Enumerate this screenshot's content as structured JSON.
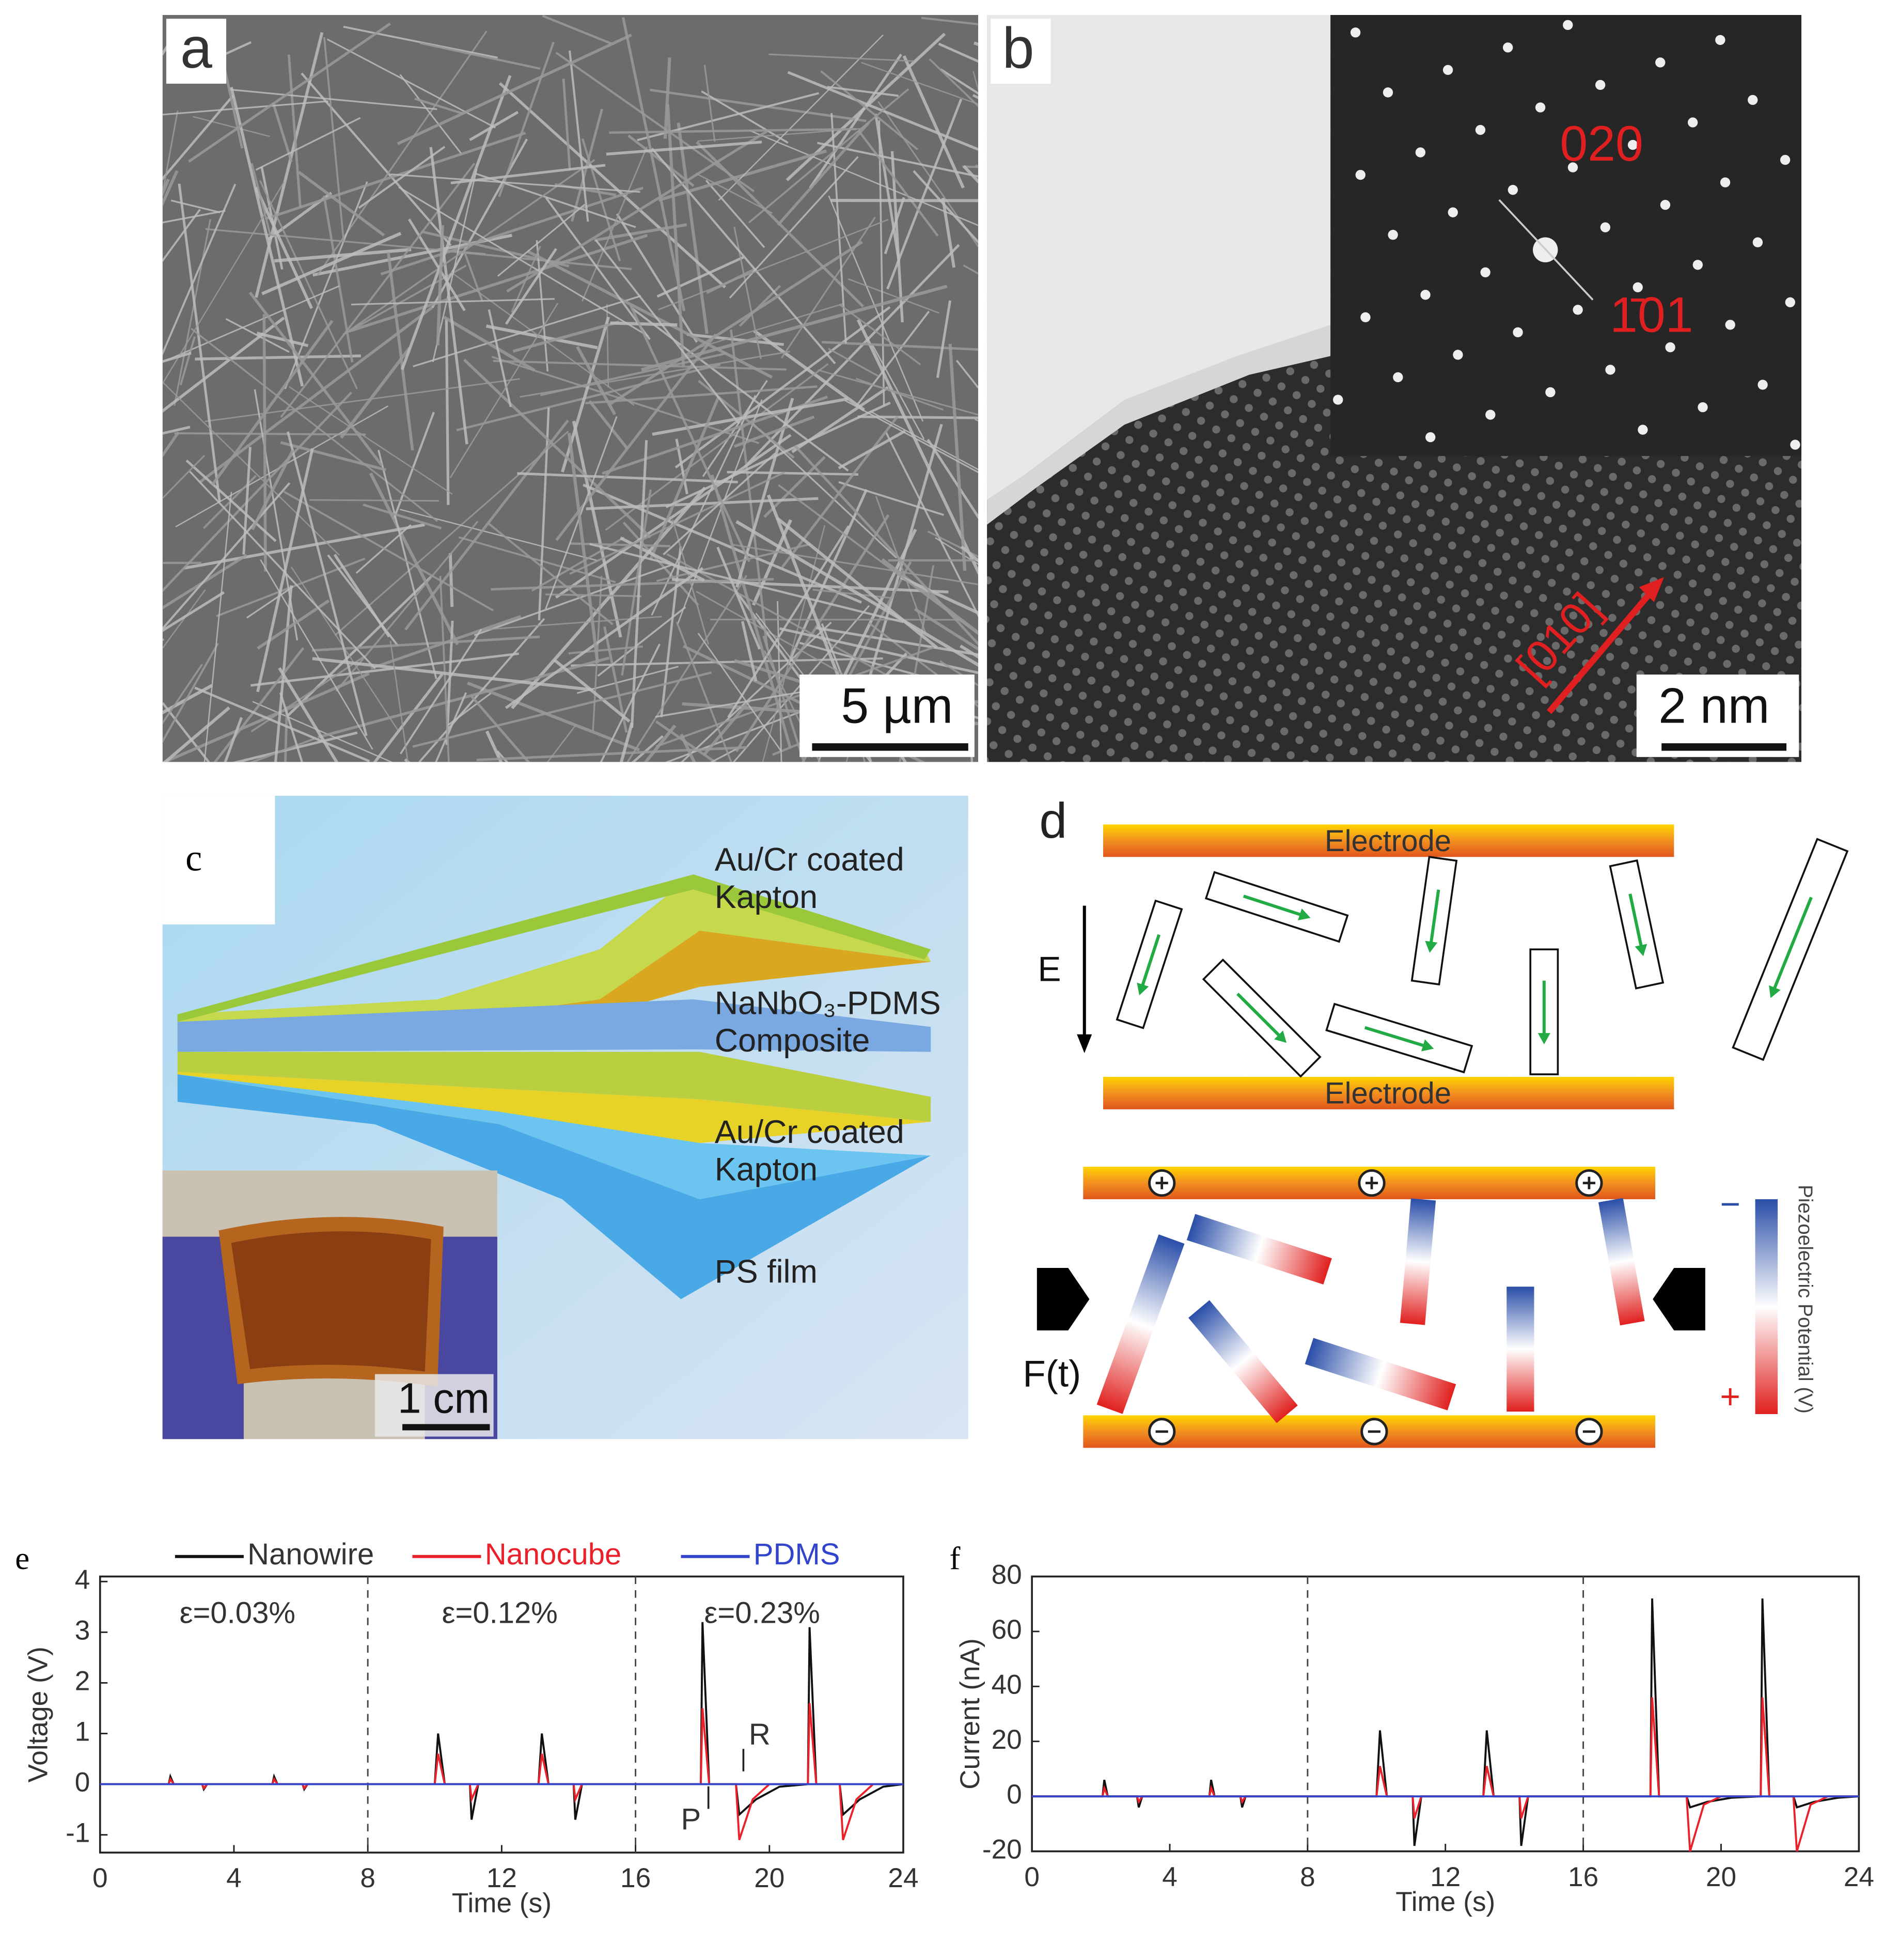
{
  "figure": {
    "a": {
      "label": "a",
      "scale_bar": "5 µm"
    },
    "b": {
      "label": "b",
      "spot_1": "020",
      "spot_2": "1̄01",
      "direction": "[010]",
      "scale_bar": "2 nm"
    },
    "c": {
      "label": "c",
      "layers": [
        [
          "Au/Cr coated",
          "Kapton"
        ],
        [
          "NaNbO₃-PDMS",
          "Composite"
        ],
        [
          "Au/Cr coated",
          "Kapton"
        ],
        [
          "PS film"
        ]
      ],
      "scale_bar": "1 cm"
    },
    "d": {
      "label": "d",
      "electrode_top": "Electrode",
      "electrode_bottom": "Electrode",
      "field": "E",
      "force": "F(t)",
      "colorbar_label": "Piezoelectric Potential (V)",
      "colorbar_min": "−",
      "colorbar_max": "+"
    }
  },
  "chart_data": [
    {
      "type": "line",
      "label": "e",
      "xlabel": "Time  (s)",
      "ylabel": "Voltage (V)",
      "xlim": [
        0,
        24
      ],
      "xticks": [
        0,
        4,
        8,
        12,
        16,
        20,
        24
      ],
      "ylim": [
        -1.35,
        4.1
      ],
      "yticks": [
        -1,
        0,
        1,
        2,
        3,
        4
      ],
      "vlines": [
        8,
        16
      ],
      "legend": true,
      "annotations": [
        "ε=0.03%",
        "ε=0.12%",
        "ε=0.23%",
        "P",
        "R"
      ],
      "series": [
        {
          "name": "Nanowire",
          "color": "#111111",
          "x": [
            0,
            2.05,
            2.1,
            2.2,
            3.05,
            3.1,
            3.2,
            5.15,
            5.2,
            5.3,
            6.05,
            6.1,
            6.2,
            10.0,
            10.1,
            10.3,
            11.05,
            11.1,
            11.3,
            13.1,
            13.2,
            13.4,
            14.15,
            14.2,
            14.4,
            17.95,
            18.0,
            18.2,
            19.0,
            19.1,
            19.6,
            20.3,
            21.15,
            21.2,
            21.4,
            22.1,
            22.2,
            22.7,
            23.4,
            24
          ],
          "values": [
            0,
            0,
            0.15,
            0,
            0,
            -0.1,
            0,
            0,
            0.15,
            0,
            0,
            -0.1,
            0,
            0,
            1.0,
            0,
            0,
            -0.7,
            0,
            0,
            1.0,
            0,
            0,
            -0.7,
            0,
            0,
            3.2,
            0,
            0,
            -0.6,
            -0.3,
            -0.05,
            0,
            3.1,
            0,
            0,
            -0.6,
            -0.3,
            -0.05,
            0
          ]
        },
        {
          "name": "Nanocube",
          "color": "#e8212b",
          "x": [
            0,
            2.05,
            2.1,
            2.2,
            3.05,
            3.1,
            3.2,
            5.15,
            5.2,
            5.3,
            6.05,
            6.1,
            6.2,
            10.0,
            10.1,
            10.3,
            11.05,
            11.1,
            11.3,
            13.1,
            13.2,
            13.4,
            14.15,
            14.2,
            14.4,
            17.95,
            18.0,
            18.2,
            19.0,
            19.1,
            19.5,
            20.0,
            21.15,
            21.2,
            21.4,
            22.1,
            22.2,
            22.6,
            23.1,
            24
          ],
          "values": [
            0,
            0,
            0.1,
            0,
            0,
            -0.08,
            0,
            0,
            0.1,
            0,
            0,
            -0.08,
            0,
            0,
            0.6,
            0,
            0,
            -0.3,
            0,
            0,
            0.6,
            0,
            0,
            -0.3,
            0,
            0,
            1.5,
            0,
            0,
            -1.1,
            -0.3,
            0,
            0,
            1.6,
            0,
            0,
            -1.1,
            -0.3,
            0,
            0
          ]
        },
        {
          "name": "PDMS",
          "color": "#3344cc",
          "x": [
            0,
            24
          ],
          "values": [
            0,
            0
          ]
        }
      ]
    },
    {
      "type": "line",
      "label": "f",
      "xlabel": "Time  (s)",
      "ylabel": "Current (nA)",
      "xlim": [
        0,
        24
      ],
      "xticks": [
        0,
        4,
        8,
        12,
        16,
        20,
        24
      ],
      "ylim": [
        -20,
        80
      ],
      "yticks": [
        -20,
        0,
        20,
        40,
        60,
        80
      ],
      "vlines": [
        8,
        16
      ],
      "legend": false,
      "series": [
        {
          "color": "#111111",
          "x": [
            0,
            2.05,
            2.1,
            2.2,
            3.05,
            3.1,
            3.2,
            5.15,
            5.2,
            5.3,
            6.05,
            6.1,
            6.2,
            10.0,
            10.1,
            10.3,
            11.05,
            11.1,
            11.3,
            13.1,
            13.2,
            13.4,
            14.15,
            14.2,
            14.4,
            17.95,
            18.0,
            18.2,
            19.0,
            19.1,
            19.6,
            20.3,
            21.15,
            21.2,
            21.4,
            22.1,
            22.2,
            22.7,
            23.4,
            24
          ],
          "values": [
            0,
            0,
            6,
            0,
            0,
            -4,
            0,
            0,
            6,
            0,
            0,
            -4,
            0,
            0,
            24,
            0,
            0,
            -18,
            0,
            0,
            24,
            0,
            0,
            -18,
            0,
            0,
            72,
            0,
            0,
            -4,
            -2,
            -0.5,
            0,
            72,
            0,
            0,
            -4,
            -2,
            -0.5,
            0
          ]
        },
        {
          "color": "#e8212b",
          "x": [
            0,
            2.05,
            2.1,
            2.2,
            3.05,
            3.1,
            3.2,
            5.15,
            5.2,
            5.3,
            6.05,
            6.1,
            6.2,
            10.0,
            10.1,
            10.3,
            11.05,
            11.1,
            11.3,
            13.1,
            13.2,
            13.4,
            14.15,
            14.2,
            14.4,
            17.95,
            18.0,
            18.2,
            19.0,
            19.1,
            19.5,
            20.0,
            21.15,
            21.2,
            21.4,
            22.1,
            22.2,
            22.6,
            23.1,
            24
          ],
          "values": [
            0,
            0,
            3,
            0,
            0,
            -2,
            0,
            0,
            3,
            0,
            0,
            -2,
            0,
            0,
            11,
            0,
            0,
            -8,
            0,
            0,
            11,
            0,
            0,
            -8,
            0,
            0,
            36,
            0,
            0,
            -20,
            -3,
            0,
            0,
            36,
            0,
            0,
            -20,
            -3,
            0,
            0
          ]
        },
        {
          "color": "#3344cc",
          "x": [
            0,
            24
          ],
          "values": [
            0,
            0
          ]
        }
      ]
    }
  ]
}
